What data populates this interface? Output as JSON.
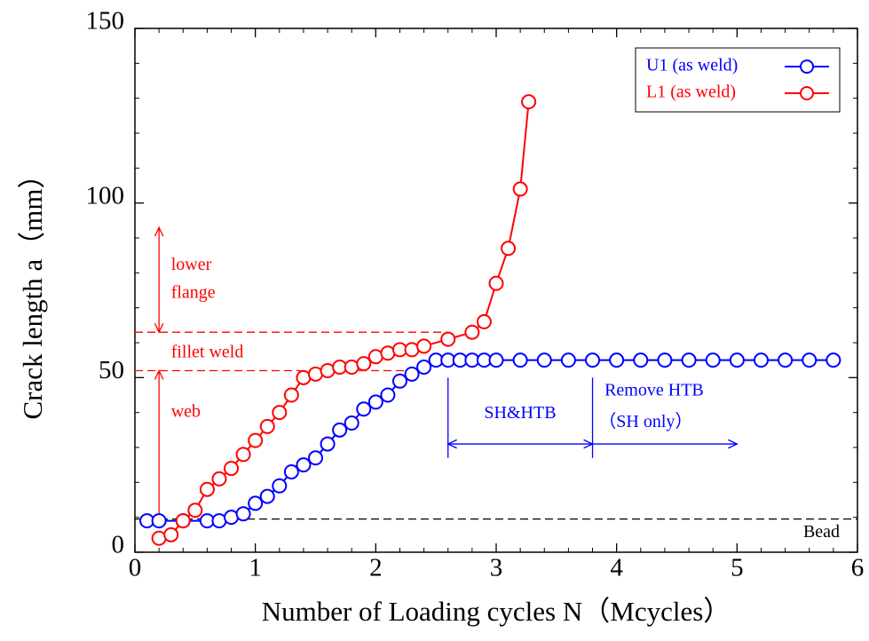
{
  "chart_data": {
    "type": "line",
    "xlabel": "Number of Loading cycles N（Mcycles）",
    "ylabel": "Crack length a（mm）",
    "xlim": [
      0,
      6
    ],
    "xticks": [
      0,
      1,
      2,
      3,
      4,
      5,
      6
    ],
    "ylim": [
      0,
      150
    ],
    "yticks": [
      0,
      50,
      100,
      150
    ],
    "legend": "upper right",
    "series": [
      {
        "name": "U1 (as weld)",
        "color": "#0000ff",
        "x": [
          0.1,
          0.2,
          0.4,
          0.6,
          0.7,
          0.8,
          0.9,
          1.0,
          1.1,
          1.2,
          1.3,
          1.4,
          1.5,
          1.6,
          1.7,
          1.8,
          1.9,
          2.0,
          2.1,
          2.2,
          2.3,
          2.4,
          2.5,
          2.6,
          2.7,
          2.8,
          2.9,
          3.0,
          3.2,
          3.4,
          3.6,
          3.8,
          4.0,
          4.2,
          4.4,
          4.6,
          4.8,
          5.0,
          5.2,
          5.4,
          5.6,
          5.8
        ],
        "values": [
          9,
          9,
          9,
          9,
          9,
          10,
          11,
          14,
          16,
          19,
          23,
          25,
          27,
          31,
          35,
          37,
          41,
          43,
          45,
          49,
          51,
          53,
          55,
          55,
          55,
          55,
          55,
          55,
          55,
          55,
          55,
          55,
          55,
          55,
          55,
          55,
          55,
          55,
          55,
          55,
          55,
          55
        ]
      },
      {
        "name": "L1 (as weld)",
        "color": "#ff0000",
        "x": [
          0.2,
          0.3,
          0.4,
          0.5,
          0.6,
          0.7,
          0.8,
          0.9,
          1.0,
          1.1,
          1.2,
          1.3,
          1.4,
          1.5,
          1.6,
          1.7,
          1.8,
          1.9,
          2.0,
          2.1,
          2.2,
          2.3,
          2.4,
          2.6,
          2.8,
          2.9,
          3.0,
          3.1,
          3.2,
          3.27
        ],
        "values": [
          4,
          5,
          9,
          12,
          18,
          21,
          24,
          28,
          32,
          36,
          40,
          45,
          50,
          51,
          52,
          53,
          53,
          54,
          56,
          57,
          58,
          58,
          59,
          61,
          63,
          66,
          77,
          87,
          104,
          129
        ]
      }
    ],
    "hlines": [
      {
        "y": 63,
        "x_end": 2.6,
        "color": "#ff0000"
      },
      {
        "y": 52,
        "x_end": 2.4,
        "color": "#ff0000"
      },
      {
        "y": 9.5,
        "color": "#000000"
      }
    ],
    "arrows": [
      {
        "x": [
          0.2,
          0.2
        ],
        "y": [
          63,
          93
        ],
        "color": "#ff0000",
        "heads": "both"
      },
      {
        "x": [
          0.2,
          0.2
        ],
        "y": [
          52,
          8
        ],
        "color": "#ff0000",
        "heads": "both"
      },
      {
        "x": [
          2.6,
          3.8
        ],
        "y": [
          31,
          31
        ],
        "color": "#0000ff",
        "heads": "both"
      },
      {
        "x": [
          3.8,
          5.0
        ],
        "y": [
          31,
          31
        ],
        "color": "#0000ff",
        "heads": "end"
      },
      {
        "x": [
          2.6,
          2.6
        ],
        "y": [
          50,
          27
        ],
        "color": "#0000ff",
        "heads": "none"
      },
      {
        "x": [
          3.8,
          3.8
        ],
        "y": [
          50,
          27
        ],
        "color": "#0000ff",
        "heads": "none"
      }
    ],
    "annotations": [
      {
        "text": "lower",
        "x": 0.3,
        "y": 82,
        "color": "#ff0000"
      },
      {
        "text": "flange",
        "x": 0.3,
        "y": 74,
        "color": "#ff0000"
      },
      {
        "text": "fillet weld",
        "x": 0.3,
        "y": 57,
        "color": "#ff0000"
      },
      {
        "text": "web",
        "x": 0.3,
        "y": 40,
        "color": "#ff0000"
      },
      {
        "text": "Bead",
        "x": 5.55,
        "y": 5.5,
        "color": "#000000"
      },
      {
        "text": "SH&HTB",
        "x": 2.9,
        "y": 39.5,
        "color": "#0000ff"
      },
      {
        "text": "Remove HTB",
        "x": 3.9,
        "y": 46,
        "color": "#0000ff"
      },
      {
        "text": "（SH only）",
        "x": 3.85,
        "y": 37,
        "color": "#0000ff"
      }
    ]
  }
}
